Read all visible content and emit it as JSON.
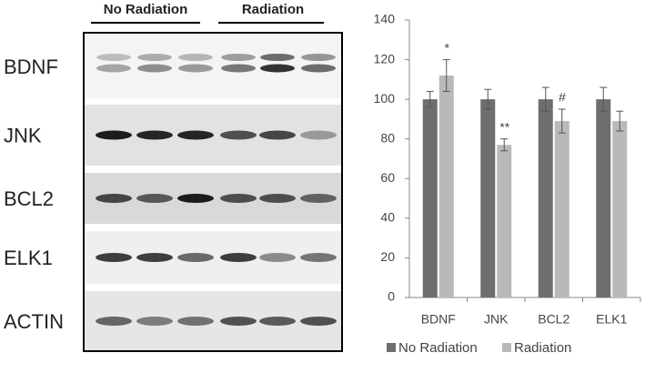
{
  "blot": {
    "groups": [
      "No Radiation",
      "Radiation"
    ],
    "rows": [
      "BDNF",
      "JNK",
      "BCL2",
      "ELK1",
      "ACTIN"
    ]
  },
  "chart_data": {
    "type": "bar",
    "categories": [
      "BDNF",
      "JNK",
      "BCL2",
      "ELK1"
    ],
    "series": [
      {
        "name": "No Radiation",
        "color": "#6e6e6e",
        "values": [
          100,
          100,
          100,
          100
        ],
        "errors": [
          4,
          5,
          6,
          6
        ],
        "markers": [
          null,
          null,
          null,
          null
        ]
      },
      {
        "name": "Radiation",
        "color": "#b9b9b9",
        "values": [
          112,
          77,
          89,
          89
        ],
        "errors": [
          8,
          3,
          6,
          5
        ],
        "markers": [
          "*",
          "**",
          "#",
          null
        ]
      }
    ],
    "ylim": [
      0,
      140
    ],
    "yticks": [
      0,
      20,
      40,
      60,
      80,
      100,
      120,
      140
    ],
    "legend": "bottom"
  }
}
